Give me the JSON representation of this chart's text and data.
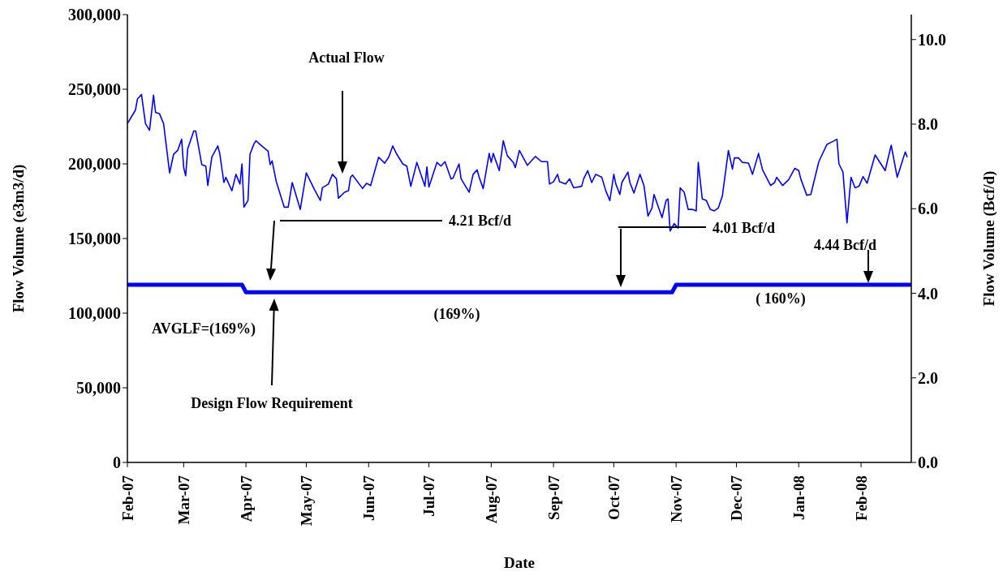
{
  "chart_data": {
    "type": "line",
    "xlabel": "Date",
    "ylabel": "Flow Volume  (e3m3/d)",
    "y2label": "Flow Volume  (Bcf/d)",
    "xlim": [
      "2007-02-01",
      "2008-02-26"
    ],
    "xticks": [
      {
        "value": "2007-02-01",
        "label": "Feb-07"
      },
      {
        "value": "2007-03-01",
        "label": "Mar-07"
      },
      {
        "value": "2007-04-01",
        "label": "Apr-07"
      },
      {
        "value": "2007-05-01",
        "label": "May-07"
      },
      {
        "value": "2007-06-01",
        "label": "Jun-07"
      },
      {
        "value": "2007-07-01",
        "label": "Jul-07"
      },
      {
        "value": "2007-08-01",
        "label": "Aug-07"
      },
      {
        "value": "2007-09-01",
        "label": "Sep-07"
      },
      {
        "value": "2007-10-01",
        "label": "Oct-07"
      },
      {
        "value": "2007-11-01",
        "label": "Nov-07"
      },
      {
        "value": "2007-12-01",
        "label": "Dec-07"
      },
      {
        "value": "2008-01-01",
        "label": "Jan-08"
      },
      {
        "value": "2008-02-01",
        "label": "Feb-08"
      }
    ],
    "ylim": [
      0,
      300000
    ],
    "yticks": [
      {
        "value": 0,
        "label": "0"
      },
      {
        "value": 50000,
        "label": "50,000"
      },
      {
        "value": 100000,
        "label": "100,000"
      },
      {
        "value": 150000,
        "label": "150,000"
      },
      {
        "value": 200000,
        "label": "200,000"
      },
      {
        "value": 250000,
        "label": "250,000"
      },
      {
        "value": 300000,
        "label": "300,000"
      }
    ],
    "y2lim": [
      0,
      10.59
    ],
    "y2ticks": [
      {
        "value": 0,
        "label": "0.0"
      },
      {
        "value": 2,
        "label": "2.0"
      },
      {
        "value": 4,
        "label": "4.0"
      },
      {
        "value": 6,
        "label": "6.0"
      },
      {
        "value": 8,
        "label": "8.0"
      },
      {
        "value": 10,
        "label": "10.0"
      }
    ],
    "grid": false,
    "legend": false,
    "marker": "none",
    "line_style": "solid",
    "series": [
      {
        "color": "#0000ff",
        "x": [
          "2007-02-01",
          "2007-02-05",
          "2007-02-06",
          "2007-02-08",
          "2007-02-10",
          "2007-02-12",
          "2007-02-14",
          "2007-02-15",
          "2007-02-17",
          "2007-02-19",
          "2007-02-22",
          "2007-02-24",
          "2007-02-26",
          "2007-02-28",
          "2007-03-01",
          "2007-03-02",
          "2007-03-03",
          "2007-03-06",
          "2007-03-07",
          "2007-03-08",
          "2007-03-10",
          "2007-03-12",
          "2007-03-13",
          "2007-03-15",
          "2007-03-18",
          "2007-03-19",
          "2007-03-21",
          "2007-03-22",
          "2007-03-25",
          "2007-03-27",
          "2007-03-29",
          "2007-03-30",
          "2007-03-31",
          "2007-04-02",
          "2007-04-03",
          "2007-04-05",
          "2007-04-06",
          "2007-04-08",
          "2007-04-12",
          "2007-04-13",
          "2007-04-14",
          "2007-04-16",
          "2007-04-20",
          "2007-04-22",
          "2007-04-24",
          "2007-04-25",
          "2007-04-28",
          "2007-05-01",
          "2007-05-05",
          "2007-05-08",
          "2007-05-09",
          "2007-05-12",
          "2007-05-14",
          "2007-05-16",
          "2007-05-17",
          "2007-05-20",
          "2007-05-22",
          "2007-05-23",
          "2007-05-24",
          "2007-05-29",
          "2007-05-31",
          "2007-06-02",
          "2007-06-06",
          "2007-06-09",
          "2007-06-11",
          "2007-06-13",
          "2007-06-15",
          "2007-06-18",
          "2007-06-20",
          "2007-06-22",
          "2007-06-25",
          "2007-06-29",
          "2007-06-30",
          "2007-07-01",
          "2007-07-05",
          "2007-07-07",
          "2007-07-09",
          "2007-07-12",
          "2007-07-13",
          "2007-07-16",
          "2007-07-17",
          "2007-07-21",
          "2007-07-23",
          "2007-07-25",
          "2007-07-26",
          "2007-07-28",
          "2007-07-31",
          "2007-08-01",
          "2007-08-02",
          "2007-08-05",
          "2007-08-07",
          "2007-08-09",
          "2007-08-12",
          "2007-08-13",
          "2007-08-15",
          "2007-08-17",
          "2007-08-19",
          "2007-08-23",
          "2007-08-26",
          "2007-08-29",
          "2007-08-30",
          "2007-09-01",
          "2007-09-03",
          "2007-09-04",
          "2007-09-07",
          "2007-09-09",
          "2007-09-11",
          "2007-09-15",
          "2007-09-16",
          "2007-09-18",
          "2007-09-20",
          "2007-09-22",
          "2007-09-25",
          "2007-09-27",
          "2007-09-29",
          "2007-10-01",
          "2007-10-02",
          "2007-10-04",
          "2007-10-05",
          "2007-10-08",
          "2007-10-09",
          "2007-10-11",
          "2007-10-14",
          "2007-10-16",
          "2007-10-18",
          "2007-10-20",
          "2007-10-21",
          "2007-10-25",
          "2007-10-27",
          "2007-10-28",
          "2007-10-29",
          "2007-10-31",
          "2007-11-02",
          "2007-11-03",
          "2007-11-05",
          "2007-11-07",
          "2007-11-09",
          "2007-11-11",
          "2007-11-12",
          "2007-11-14",
          "2007-11-16",
          "2007-11-18",
          "2007-11-20",
          "2007-11-22",
          "2007-11-24",
          "2007-11-27",
          "2007-11-29",
          "2007-11-30",
          "2007-12-02",
          "2007-12-04",
          "2007-12-07",
          "2007-12-09",
          "2007-12-12",
          "2007-12-14",
          "2007-12-18",
          "2007-12-20",
          "2007-12-21",
          "2007-12-24",
          "2007-12-27",
          "2007-12-30",
          "2008-01-01",
          "2008-01-02",
          "2008-01-05",
          "2008-01-07",
          "2008-01-11",
          "2008-01-15",
          "2008-01-18",
          "2008-01-20",
          "2008-01-21",
          "2008-01-23",
          "2008-01-25",
          "2008-01-27",
          "2008-01-29",
          "2008-01-31",
          "2008-02-02",
          "2008-02-04",
          "2008-02-08",
          "2008-02-13",
          "2008-02-16",
          "2008-02-19",
          "2008-02-23",
          "2008-02-24"
        ],
        "values": [
          227000,
          236000,
          243500,
          246500,
          227000,
          222500,
          246000,
          234500,
          233500,
          227000,
          194000,
          206500,
          209000,
          216500,
          197500,
          192000,
          210000,
          222000,
          222000,
          214500,
          199500,
          198500,
          185500,
          204500,
          212000,
          206500,
          187500,
          191000,
          182000,
          193000,
          186500,
          200000,
          171000,
          175500,
          206500,
          213500,
          215500,
          213000,
          208500,
          199500,
          202000,
          188500,
          171000,
          171000,
          187500,
          183000,
          169500,
          194000,
          183000,
          175500,
          184000,
          186500,
          193000,
          190000,
          177000,
          181000,
          182000,
          191000,
          192500,
          183500,
          187000,
          185500,
          204500,
          200500,
          204500,
          212000,
          206500,
          200000,
          198500,
          185000,
          201000,
          185000,
          198000,
          184500,
          201000,
          198500,
          201500,
          190000,
          190500,
          200000,
          190000,
          181000,
          193000,
          196000,
          191000,
          183500,
          207000,
          201000,
          207000,
          195500,
          215500,
          205500,
          201000,
          197500,
          209000,
          204000,
          199000,
          205000,
          201500,
          201500,
          186500,
          188000,
          193000,
          188000,
          186500,
          190000,
          184000,
          185000,
          190000,
          195500,
          187500,
          193000,
          191000,
          182000,
          175500,
          193000,
          186500,
          179500,
          187500,
          194500,
          187500,
          180500,
          193000,
          185500,
          165000,
          170500,
          179500,
          164000,
          175500,
          176500,
          155000,
          160000,
          157000,
          184000,
          181000,
          169500,
          169500,
          168500,
          201000,
          176500,
          175500,
          169500,
          168500,
          170500,
          178500,
          209000,
          196500,
          204000,
          204000,
          201000,
          200500,
          193000,
          207000,
          196000,
          185500,
          187500,
          191000,
          185500,
          189500,
          197000,
          195500,
          190000,
          179000,
          179500,
          201500,
          213000,
          215000,
          216500,
          200000,
          194500,
          160500,
          191000,
          184000,
          185000,
          191500,
          187000,
          206000,
          195500,
          212500,
          191000,
          208000,
          204500
        ]
      },
      {
        "color": "#0000ff",
        "x": [
          "2007-02-01",
          "2007-03-30",
          "2007-04-01",
          "2007-10-30",
          "2007-11-01",
          "2008-02-26"
        ],
        "values": [
          119000,
          119000,
          114000,
          114000,
          119000,
          119000
        ]
      }
    ],
    "annotations": [
      "Actual Flow",
      "4.21 Bcf/d",
      "4.01 Bcf/d",
      "4.44 Bcf/d",
      "AVGLF=(169%)",
      "(169%)",
      "( 160%)",
      "Design Flow Requirement"
    ]
  }
}
